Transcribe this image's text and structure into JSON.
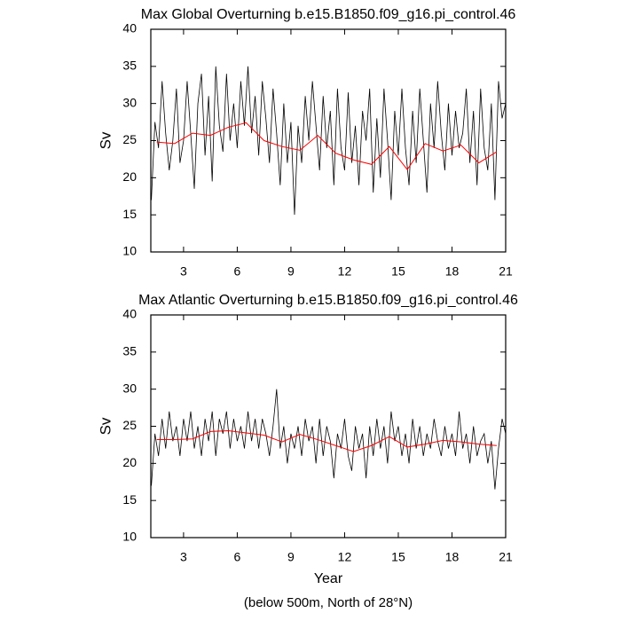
{
  "chart_data": [
    {
      "type": "line",
      "title": "Max Global Overturning b.e15.B1850.f09_g16.pi_control.46",
      "y_label": "Sv",
      "xlim": [
        1.17,
        21
      ],
      "xticks": [
        3,
        6,
        9,
        12,
        15,
        18,
        21
      ],
      "ylim": [
        10,
        40
      ],
      "yticks": [
        10,
        15,
        20,
        25,
        30,
        35,
        40
      ],
      "series": [
        {
          "color": "#000000",
          "x": [
            1.2,
            1.4,
            1.6,
            1.8,
            2.0,
            2.2,
            2.4,
            2.6,
            2.8,
            3.0,
            3.2,
            3.4,
            3.6,
            3.8,
            4.0,
            4.2,
            4.4,
            4.6,
            4.8,
            5.0,
            5.2,
            5.4,
            5.6,
            5.8,
            6.0,
            6.2,
            6.4,
            6.6,
            6.8,
            7.0,
            7.2,
            7.4,
            7.6,
            7.8,
            8.0,
            8.2,
            8.4,
            8.6,
            8.8,
            9.0,
            9.2,
            9.4,
            9.6,
            9.8,
            10.0,
            10.2,
            10.4,
            10.6,
            10.8,
            11.0,
            11.2,
            11.4,
            11.6,
            11.8,
            12.0,
            12.2,
            12.4,
            12.6,
            12.8,
            13.0,
            13.2,
            13.4,
            13.6,
            13.8,
            14.0,
            14.2,
            14.4,
            14.6,
            14.8,
            15.0,
            15.2,
            15.4,
            15.6,
            15.8,
            16.0,
            16.2,
            16.4,
            16.6,
            16.8,
            17.0,
            17.2,
            17.4,
            17.6,
            17.8,
            18.0,
            18.2,
            18.4,
            18.6,
            18.8,
            19.0,
            19.2,
            19.4,
            19.6,
            19.8,
            20.0,
            20.2,
            20.4,
            20.6,
            20.8,
            21.0
          ],
          "values": [
            17,
            27.5,
            24,
            33,
            26,
            21,
            25,
            32,
            22,
            25,
            33,
            26,
            18.5,
            30,
            34,
            23,
            31,
            19.5,
            35,
            27,
            23.5,
            34,
            25,
            30,
            24,
            33,
            27,
            35,
            26,
            31,
            23,
            33,
            28,
            22,
            32,
            26,
            19,
            30,
            22,
            27.5,
            15,
            27,
            22,
            31,
            25,
            33,
            27,
            21,
            31,
            24,
            29,
            19,
            32,
            24,
            21,
            31.5,
            22,
            27,
            19,
            29,
            25,
            32,
            18,
            28,
            20,
            32,
            25,
            17,
            29,
            23,
            32,
            24,
            19,
            29,
            22,
            32,
            25,
            18,
            30,
            24,
            33,
            26,
            21,
            30,
            23,
            29,
            24,
            26,
            32,
            22,
            29,
            19,
            32,
            24,
            21,
            30,
            17,
            33,
            28,
            30
          ]
        },
        {
          "color": "#ff0000",
          "x": [
            1.5,
            2.5,
            3.5,
            4.5,
            5.5,
            6.5,
            7.5,
            8.5,
            9.5,
            10.5,
            11.5,
            12.5,
            13.5,
            14.5,
            15.5,
            16.5,
            17.5,
            18.5,
            19.5,
            20.5
          ],
          "values": [
            24.8,
            24.6,
            26.0,
            25.7,
            26.8,
            27.4,
            25.0,
            24.2,
            23.7,
            25.7,
            23.3,
            22.4,
            21.8,
            24.2,
            21.1,
            24.6,
            23.6,
            24.4,
            22.0,
            23.5
          ]
        }
      ]
    },
    {
      "type": "line",
      "title": "Max Atlantic Overturning b.e15.B1850.f09_g16.pi_control.46",
      "y_label": "Sv",
      "x_label": "Year",
      "xlim": [
        1.17,
        21
      ],
      "xticks": [
        3,
        6,
        9,
        12,
        15,
        18,
        21
      ],
      "ylim": [
        10,
        40
      ],
      "yticks": [
        10,
        15,
        20,
        25,
        30,
        35,
        40
      ],
      "series": [
        {
          "color": "#000000",
          "x": [
            1.2,
            1.4,
            1.6,
            1.8,
            2.0,
            2.2,
            2.4,
            2.6,
            2.8,
            3.0,
            3.2,
            3.4,
            3.6,
            3.8,
            4.0,
            4.2,
            4.4,
            4.6,
            4.8,
            5.0,
            5.2,
            5.4,
            5.6,
            5.8,
            6.0,
            6.2,
            6.4,
            6.6,
            6.8,
            7.0,
            7.2,
            7.4,
            7.6,
            7.8,
            8.0,
            8.2,
            8.4,
            8.6,
            8.8,
            9.0,
            9.2,
            9.4,
            9.6,
            9.8,
            10.0,
            10.2,
            10.4,
            10.6,
            10.8,
            11.0,
            11.2,
            11.4,
            11.6,
            11.8,
            12.0,
            12.2,
            12.4,
            12.6,
            12.8,
            13.0,
            13.2,
            13.4,
            13.6,
            13.8,
            14.0,
            14.2,
            14.4,
            14.6,
            14.8,
            15.0,
            15.2,
            15.4,
            15.6,
            15.8,
            16.0,
            16.2,
            16.4,
            16.6,
            16.8,
            17.0,
            17.2,
            17.4,
            17.6,
            17.8,
            18.0,
            18.2,
            18.4,
            18.6,
            18.8,
            19.0,
            19.2,
            19.4,
            19.6,
            19.8,
            20.0,
            20.2,
            20.4,
            20.6,
            20.8,
            21.0
          ],
          "values": [
            17,
            24,
            21,
            26,
            22,
            27,
            23,
            25,
            21,
            26,
            23,
            27,
            22,
            25,
            21,
            26,
            23,
            27,
            21,
            26,
            24,
            27,
            22,
            26,
            23,
            25,
            22,
            27,
            23,
            26,
            22,
            26,
            24,
            21,
            25,
            30,
            22,
            25,
            20,
            24,
            22,
            25,
            21,
            26,
            23,
            25,
            20,
            26,
            21,
            25,
            23,
            18,
            24,
            22,
            26,
            21,
            19,
            25,
            22,
            24,
            18,
            25,
            21,
            26,
            22,
            25,
            20,
            27,
            23,
            25,
            21,
            24,
            20,
            26,
            22,
            25,
            21,
            24,
            22,
            26,
            23,
            21,
            25,
            22,
            24,
            21,
            27,
            22,
            24,
            20,
            25,
            21,
            23,
            24,
            20,
            23,
            16.5,
            22,
            26,
            24
          ]
        },
        {
          "color": "#ff0000",
          "x": [
            1.5,
            2.5,
            3.5,
            4.5,
            5.5,
            6.5,
            7.5,
            8.5,
            9.5,
            10.5,
            11.5,
            12.5,
            13.5,
            14.5,
            15.5,
            16.5,
            17.5,
            18.5,
            19.5,
            20.5
          ],
          "values": [
            23.2,
            23.2,
            23.3,
            24.3,
            24.4,
            24.1,
            23.8,
            22.9,
            23.9,
            23.2,
            22.4,
            21.6,
            22.4,
            23.6,
            22.2,
            22.6,
            23.1,
            22.9,
            22.6,
            22.4
          ]
        }
      ]
    }
  ],
  "footnote": "(below 500m, North of 28°N)"
}
